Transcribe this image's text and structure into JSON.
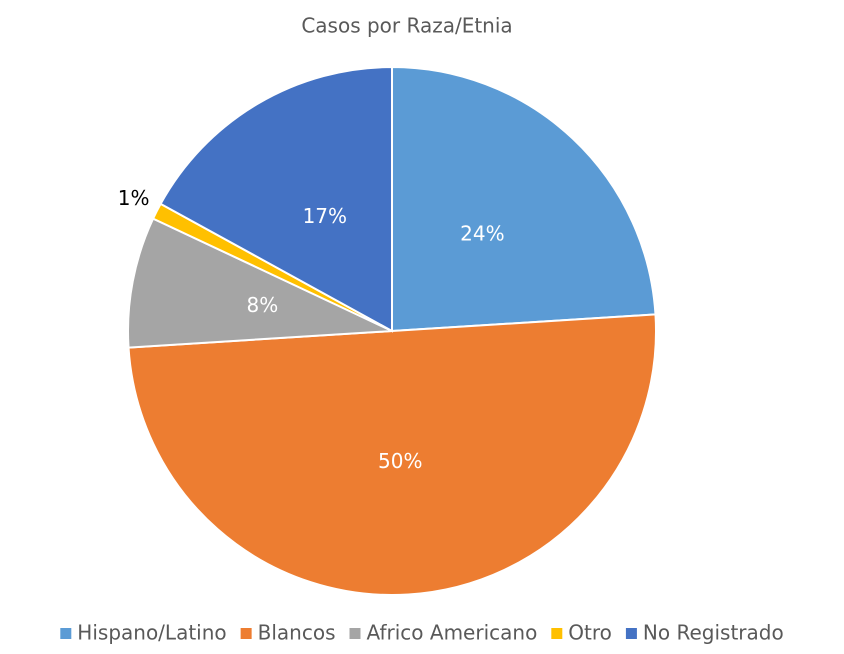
{
  "chart_data": {
    "type": "pie",
    "title": "Casos por Raza/Etnia",
    "categories": [
      "Hispano/Latino",
      "Blancos",
      "Africo Americano",
      "Otro",
      "No Registrado"
    ],
    "values": [
      24,
      50,
      8,
      1,
      17
    ],
    "value_labels": [
      "24%",
      "50%",
      "8%",
      "1%",
      "17%"
    ],
    "colors": [
      "#5b9bd5",
      "#ed7d31",
      "#a5a5a5",
      "#ffc000",
      "#4472c4"
    ],
    "legend": "bottom"
  }
}
